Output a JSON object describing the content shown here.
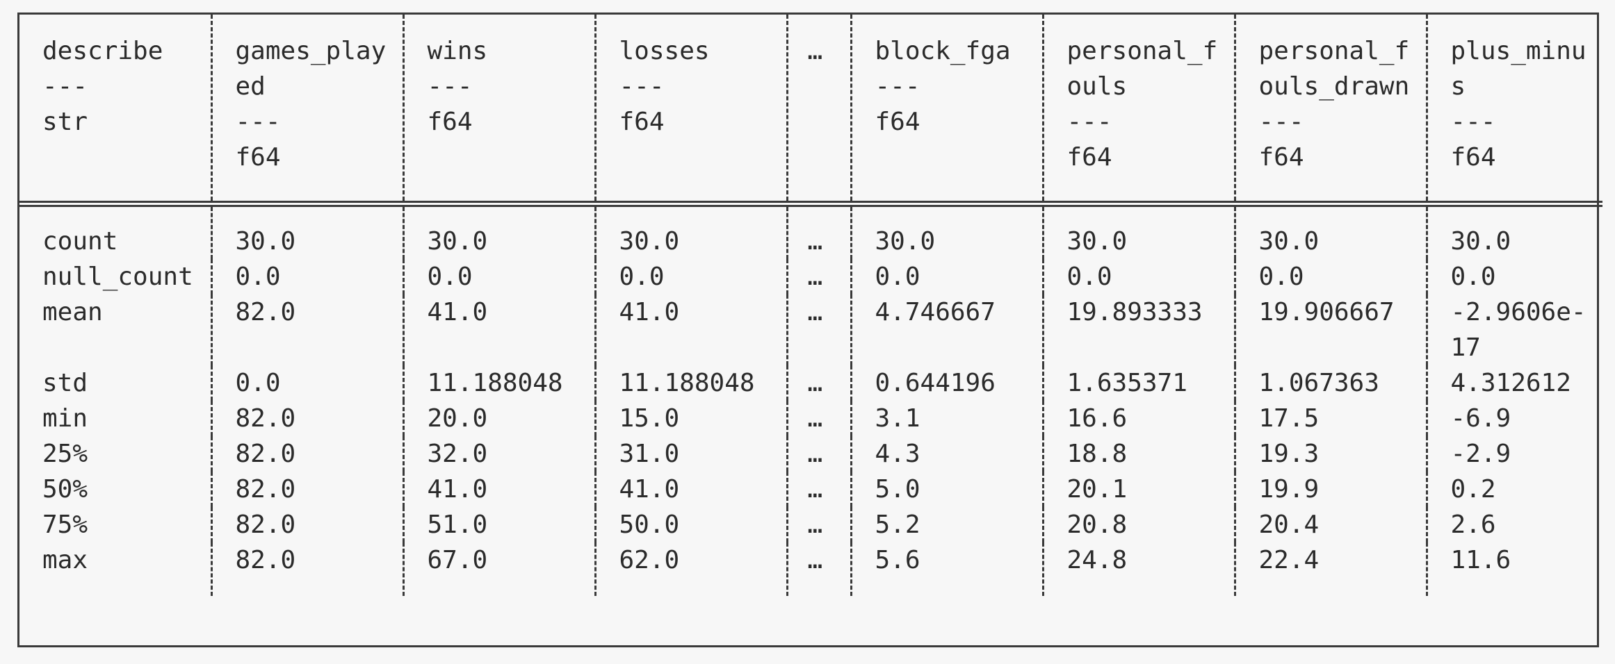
{
  "columns": [
    {
      "name": "describe",
      "dtype": "str",
      "separator": "---"
    },
    {
      "name": "games_played",
      "dtype": "f64",
      "separator": "---"
    },
    {
      "name": "wins",
      "dtype": "f64",
      "separator": "---"
    },
    {
      "name": "losses",
      "dtype": "f64",
      "separator": "---"
    },
    {
      "name": "…",
      "dtype": "",
      "separator": ""
    },
    {
      "name": "block_fga",
      "dtype": "f64",
      "separator": "---"
    },
    {
      "name": "personal_fouls",
      "dtype": "f64",
      "separator": "---"
    },
    {
      "name": "personal_fouls_drawn",
      "dtype": "f64",
      "separator": "---"
    },
    {
      "name": "plus_minus",
      "dtype": "f64",
      "separator": "---"
    }
  ],
  "rows": [
    [
      "count",
      "30.0",
      "30.0",
      "30.0",
      "…",
      "30.0",
      "30.0",
      "30.0",
      "30.0"
    ],
    [
      "null_count",
      "0.0",
      "0.0",
      "0.0",
      "…",
      "0.0",
      "0.0",
      "0.0",
      "0.0"
    ],
    [
      "mean",
      "82.0",
      "41.0",
      "41.0",
      "…",
      "4.746667",
      "19.893333",
      "19.906667",
      "-2.9606e-17"
    ],
    [
      "std",
      "0.0",
      "11.188048",
      "11.188048",
      "…",
      "0.644196",
      "1.635371",
      "1.067363",
      "4.312612"
    ],
    [
      "min",
      "82.0",
      "20.0",
      "15.0",
      "…",
      "3.1",
      "16.6",
      "17.5",
      "-6.9"
    ],
    [
      "25%",
      "82.0",
      "32.0",
      "31.0",
      "…",
      "4.3",
      "18.8",
      "19.3",
      "-2.9"
    ],
    [
      "50%",
      "82.0",
      "41.0",
      "41.0",
      "…",
      "5.0",
      "20.1",
      "19.9",
      "0.2"
    ],
    [
      "75%",
      "82.0",
      "51.0",
      "50.0",
      "…",
      "5.2",
      "20.8",
      "20.4",
      "2.6"
    ],
    [
      "max",
      "82.0",
      "67.0",
      "62.0",
      "…",
      "5.6",
      "24.8",
      "22.4",
      "11.6"
    ]
  ]
}
